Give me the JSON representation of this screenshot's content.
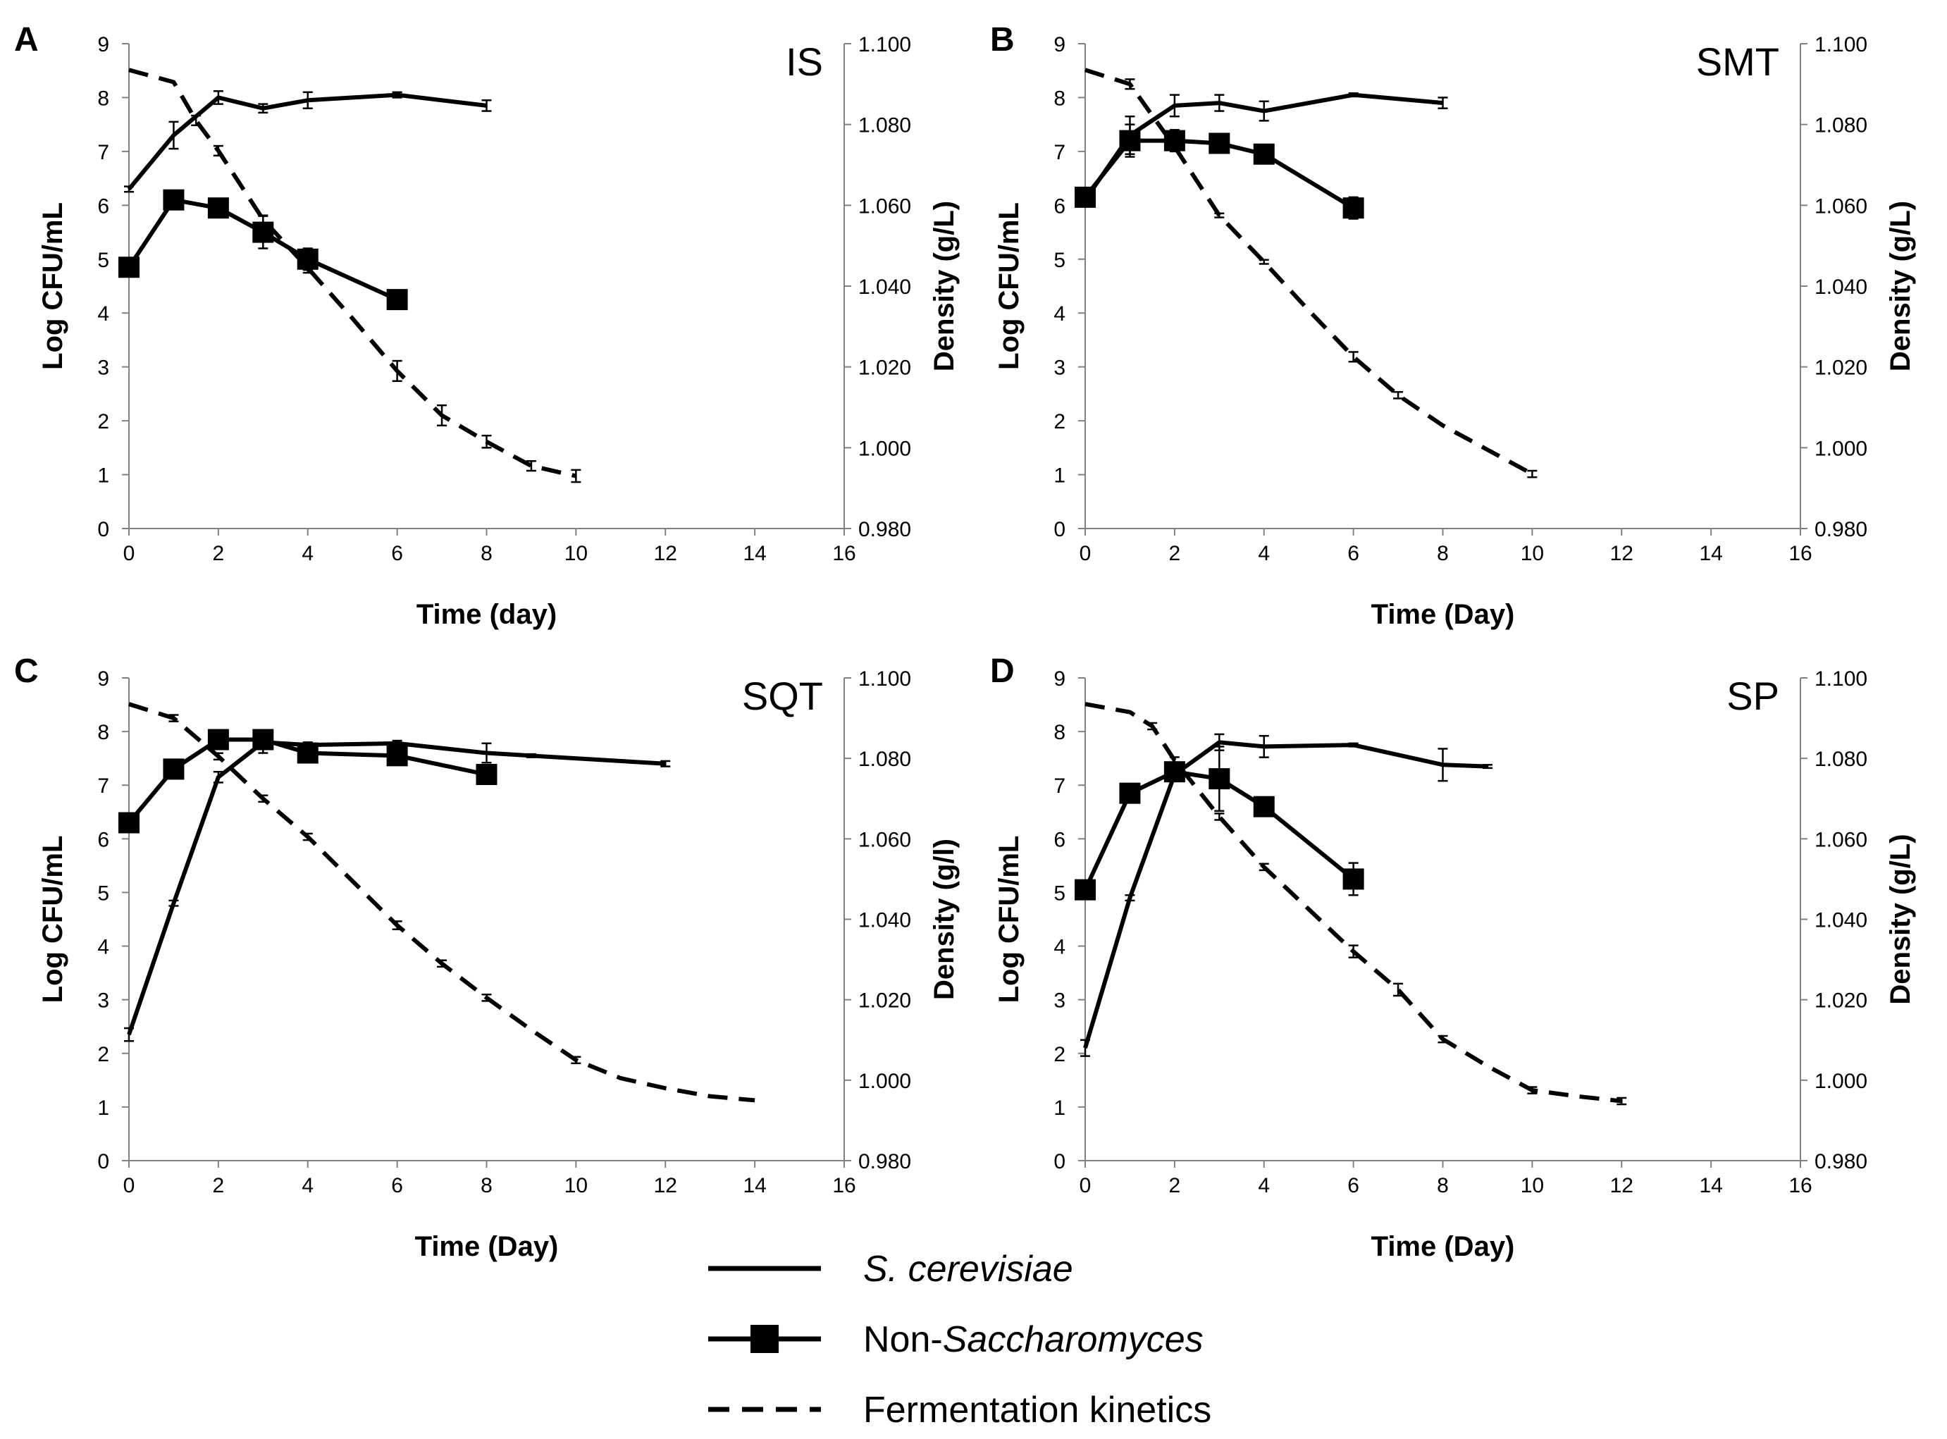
{
  "legend": {
    "items": [
      {
        "key": "scer",
        "parts": [
          {
            "text": "S. cerevisiae",
            "italic": true
          }
        ]
      },
      {
        "key": "nons",
        "parts": [
          {
            "text": "Non-",
            "italic": false
          },
          {
            "text": "Saccharomyces",
            "italic": true
          }
        ]
      },
      {
        "key": "ferm",
        "parts": [
          {
            "text": "Fermentation kinetics",
            "italic": false
          }
        ]
      }
    ]
  },
  "chart_data": [
    {
      "type": "line",
      "panel": "A",
      "tag": "IS",
      "xlabel": "Time (day)",
      "ylabel": "Log CFU/mL",
      "y2label": "Density (g/L)",
      "xlim": [
        0,
        16
      ],
      "xticks": [
        0,
        2,
        4,
        6,
        8,
        10,
        12,
        14,
        16
      ],
      "ylim": [
        0,
        9
      ],
      "yticks": [
        0,
        1,
        2,
        3,
        4,
        5,
        6,
        7,
        8,
        9
      ],
      "y2lim": [
        0.98,
        1.1
      ],
      "y2ticks": [
        "0.980",
        "1.000",
        "1.020",
        "1.040",
        "1.060",
        "1.080",
        "1.100"
      ],
      "series": [
        {
          "name": "S. cerevisiae",
          "axis": "left",
          "style": "solid",
          "x": [
            0,
            1,
            2,
            3,
            4,
            6,
            8
          ],
          "y": [
            6.3,
            7.3,
            8.0,
            7.8,
            7.95,
            8.05,
            7.85
          ],
          "err": [
            0.05,
            0.25,
            0.12,
            0.08,
            0.15,
            0.05,
            0.1
          ]
        },
        {
          "name": "Non-Saccharomyces",
          "axis": "left",
          "style": "square",
          "x": [
            0,
            1,
            2,
            3,
            4,
            6
          ],
          "y": [
            4.85,
            6.1,
            5.95,
            5.5,
            5.0,
            4.25
          ],
          "err": [
            0.05,
            0.1,
            0.1,
            0.3,
            0.2,
            0.1
          ]
        },
        {
          "name": "Fermentation kinetics",
          "axis": "right",
          "style": "dashed",
          "x": [
            0,
            1,
            1.5,
            2,
            3,
            4,
            5,
            6,
            7,
            8,
            9,
            10
          ],
          "y": [
            1.0935,
            1.0905,
            1.081,
            1.0735,
            1.0565,
            1.0445,
            1.032,
            1.019,
            1.008,
            1.0015,
            0.9955,
            0.993
          ],
          "err": [
            0,
            0,
            0.0012,
            0.0012,
            0.001,
            0.0012,
            0,
            0.0025,
            0.0025,
            0.0015,
            0.0012,
            0.0015
          ]
        }
      ]
    },
    {
      "type": "line",
      "panel": "B",
      "tag": "SMT",
      "xlabel": "Time (Day)",
      "ylabel": "Log CFU/mL",
      "y2label": "Density (g/L)",
      "xlim": [
        0,
        16
      ],
      "xticks": [
        0,
        2,
        4,
        6,
        8,
        10,
        12,
        14,
        16
      ],
      "ylim": [
        0,
        9
      ],
      "yticks": [
        0,
        1,
        2,
        3,
        4,
        5,
        6,
        7,
        8,
        9
      ],
      "y2lim": [
        0.98,
        1.1
      ],
      "y2ticks": [
        "0.980",
        "1.000",
        "1.020",
        "1.040",
        "1.060",
        "1.080",
        "1.100"
      ],
      "series": [
        {
          "name": "S. cerevisiae",
          "axis": "left",
          "style": "solid",
          "x": [
            0,
            1,
            2,
            3,
            4,
            6,
            8
          ],
          "y": [
            6.1,
            7.3,
            7.85,
            7.9,
            7.75,
            8.05,
            7.9
          ],
          "err": [
            0.1,
            0.35,
            0.2,
            0.15,
            0.18,
            0.03,
            0.1
          ]
        },
        {
          "name": "Non-Saccharomyces",
          "axis": "left",
          "style": "square",
          "x": [
            0,
            1,
            2,
            3,
            4,
            6
          ],
          "y": [
            6.15,
            7.2,
            7.2,
            7.15,
            6.95,
            5.95
          ],
          "err": [
            0.1,
            0.3,
            0.2,
            0.1,
            0.15,
            0.2
          ]
        },
        {
          "name": "Fermentation kinetics",
          "axis": "right",
          "style": "dashed",
          "x": [
            0,
            1,
            2,
            3,
            4,
            5,
            6,
            7,
            8,
            9,
            10
          ],
          "y": [
            1.0935,
            1.09,
            1.0745,
            1.0575,
            1.046,
            1.034,
            1.0225,
            1.013,
            1.0055,
            0.9995,
            0.9935
          ],
          "err": [
            0,
            0.0012,
            0.001,
            0.0005,
            0.0005,
            0,
            0.0012,
            0.0008,
            0,
            0,
            0.0008
          ]
        }
      ]
    },
    {
      "type": "line",
      "panel": "C",
      "tag": "SQT",
      "xlabel": "Time (Day)",
      "ylabel": "Log CFU/mL",
      "y2label": "Density (g/l)",
      "xlim": [
        0,
        16
      ],
      "xticks": [
        0,
        2,
        4,
        6,
        8,
        10,
        12,
        14,
        16
      ],
      "ylim": [
        0,
        9
      ],
      "yticks": [
        0,
        1,
        2,
        3,
        4,
        5,
        6,
        7,
        8,
        9
      ],
      "y2lim": [
        0.98,
        1.1
      ],
      "y2ticks": [
        "0.980",
        "1.000",
        "1.020",
        "1.040",
        "1.060",
        "1.080",
        "1.100"
      ],
      "series": [
        {
          "name": "S. cerevisiae",
          "axis": "left",
          "style": "solid",
          "x": [
            0,
            1,
            2,
            3,
            4,
            6,
            8,
            9,
            12
          ],
          "y": [
            2.35,
            4.8,
            7.15,
            7.8,
            7.75,
            7.78,
            7.6,
            7.55,
            7.4
          ],
          "err": [
            0.12,
            0.05,
            0.1,
            0.2,
            0.05,
            0.05,
            0.18,
            0.03,
            0.05
          ]
        },
        {
          "name": "Non-Saccharomyces",
          "axis": "left",
          "style": "square",
          "x": [
            0,
            1,
            2,
            3,
            4,
            6,
            8
          ],
          "y": [
            6.3,
            7.3,
            7.85,
            7.85,
            7.6,
            7.55,
            7.2
          ],
          "err": [
            0.05,
            0.05,
            0.05,
            0.1,
            0.1,
            0.1,
            0.1
          ]
        },
        {
          "name": "Fermentation kinetics",
          "axis": "right",
          "style": "dashed",
          "x": [
            0,
            1,
            2,
            3,
            4,
            5,
            6,
            7,
            8,
            9,
            10,
            11,
            12,
            13,
            14
          ],
          "y": [
            1.0935,
            1.09,
            1.0805,
            1.07,
            1.0605,
            1.0495,
            1.0385,
            1.029,
            1.0205,
            1.0125,
            1.005,
            1.0005,
            0.998,
            0.996,
            0.995
          ],
          "err": [
            0,
            0.0008,
            0.0008,
            0.0008,
            0.0008,
            0,
            0.001,
            0.0008,
            0.0008,
            0,
            0.0008,
            0,
            0,
            0,
            0
          ]
        }
      ]
    },
    {
      "type": "line",
      "panel": "D",
      "tag": "SP",
      "xlabel": "Time (Day)",
      "ylabel": "Log CFU/mL",
      "y2label": "Density (g/L)",
      "xlim": [
        0,
        16
      ],
      "xticks": [
        0,
        2,
        4,
        6,
        8,
        10,
        12,
        14,
        16
      ],
      "ylim": [
        0,
        9
      ],
      "yticks": [
        0,
        1,
        2,
        3,
        4,
        5,
        6,
        7,
        8,
        9
      ],
      "y2lim": [
        0.98,
        1.1
      ],
      "y2ticks": [
        "0.980",
        "1.000",
        "1.020",
        "1.040",
        "1.060",
        "1.080",
        "1.100"
      ],
      "series": [
        {
          "name": "S. cerevisiae",
          "axis": "left",
          "style": "solid",
          "x": [
            0,
            1,
            2,
            3,
            4,
            6,
            8,
            9
          ],
          "y": [
            2.1,
            4.9,
            7.2,
            7.8,
            7.72,
            7.75,
            7.38,
            7.35
          ],
          "err": [
            0.15,
            0.05,
            0.1,
            0.15,
            0.2,
            0.03,
            0.3,
            0.03
          ]
        },
        {
          "name": "Non-Saccharomyces",
          "axis": "left",
          "style": "square",
          "x": [
            0,
            1,
            2,
            3,
            4,
            6
          ],
          "y": [
            5.05,
            6.85,
            7.25,
            7.12,
            6.6,
            5.25
          ],
          "err": [
            0.05,
            0.1,
            0.1,
            0.6,
            0.1,
            0.3
          ]
        },
        {
          "name": "Fermentation kinetics",
          "axis": "right",
          "style": "dashed",
          "x": [
            0,
            1,
            1.5,
            2,
            3,
            4,
            5,
            6,
            7,
            8,
            9,
            10,
            11,
            12
          ],
          "y": [
            1.0935,
            1.0915,
            1.088,
            1.0795,
            1.0655,
            1.053,
            1.0425,
            1.032,
            1.0225,
            1.0102,
            1.0035,
            0.9975,
            0.996,
            0.9948
          ],
          "err": [
            0,
            0,
            0.0008,
            0.0008,
            0.0008,
            0.0008,
            0,
            0.0015,
            0.0015,
            0.0008,
            0,
            0.0008,
            0,
            0.0008
          ]
        }
      ]
    }
  ]
}
